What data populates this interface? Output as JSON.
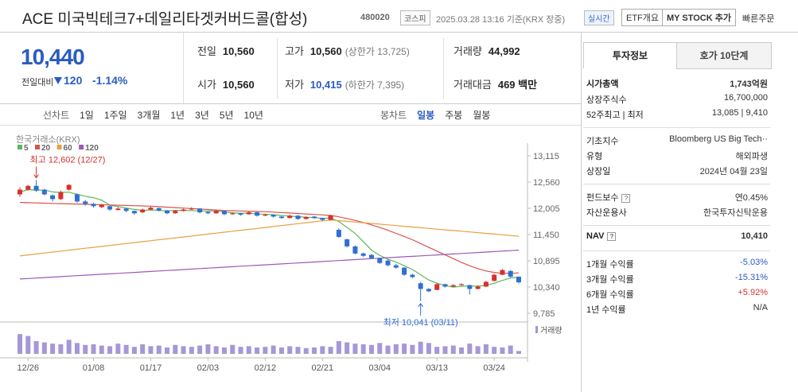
{
  "header": {
    "name": "ACE 미국빅테크7+데일리타겟커버드콜(합성)",
    "code": "480020",
    "market": "코스피",
    "time": "2025.03.28 13:16 기준(KRX 장중)",
    "realtime": "실시간",
    "etf_btn": "ETF개요",
    "mystock_btn": "MY STOCK 추가",
    "order": "빠른주문"
  },
  "price": {
    "value": "10,440",
    "change_label": "전일대비",
    "change": "120",
    "rate": "-1.14%"
  },
  "info": {
    "rows": [
      [
        {
          "label": "전일",
          "value": "10,560"
        },
        {
          "label": "고가",
          "value": "10,560",
          "extra": "(상한가 13,725)"
        },
        {
          "label": "거래량",
          "value": "44,992"
        }
      ],
      [
        {
          "label": "시가",
          "value": "10,560"
        },
        {
          "label": "저가",
          "value": "10,415",
          "extra": "(하한가 7,395)"
        },
        {
          "label": "거래대금",
          "value": "469 백만"
        }
      ]
    ]
  },
  "tabs": {
    "line": [
      "선차트",
      "1일",
      "1주일",
      "3개월",
      "1년",
      "3년",
      "5년",
      "10년"
    ],
    "candle": [
      "봉차트",
      "일봉",
      "주봉",
      "월봉"
    ]
  },
  "chart_data": {
    "type": "candlestick",
    "source": "한국거래소(KRX)",
    "categories": [
      null,
      "12/26",
      null,
      null,
      null,
      null,
      null,
      null,
      null,
      "01/08",
      null,
      null,
      null,
      null,
      null,
      null,
      "01/17",
      null,
      null,
      null,
      null,
      null,
      null,
      "02/03",
      null,
      null,
      null,
      null,
      null,
      null,
      "02/12",
      null,
      null,
      null,
      null,
      null,
      null,
      "02/21",
      null,
      null,
      null,
      null,
      null,
      null,
      "03/04",
      null,
      null,
      null,
      null,
      null,
      null,
      "03/13",
      null,
      null,
      null,
      null,
      null,
      null,
      "03/24",
      null,
      null,
      null
    ],
    "ohlc": [
      [
        12300,
        12450,
        12250,
        12400
      ],
      [
        12400,
        12500,
        12380,
        12480
      ],
      [
        12480,
        12602,
        12350,
        12380
      ],
      [
        12400,
        12420,
        12280,
        12300
      ],
      [
        12280,
        12300,
        12150,
        12200
      ],
      [
        12200,
        12380,
        12180,
        12350
      ],
      [
        12400,
        12520,
        12380,
        12500
      ],
      [
        12300,
        12320,
        12120,
        12150
      ],
      [
        12150,
        12180,
        12060,
        12100
      ],
      [
        12100,
        12120,
        12020,
        12050
      ],
      [
        12030,
        12100,
        12010,
        12080
      ],
      [
        12050,
        12060,
        11950,
        11980
      ],
      [
        11970,
        12030,
        11960,
        12000
      ],
      [
        12000,
        12010,
        11920,
        11950
      ],
      [
        11950,
        11960,
        11870,
        11900
      ],
      [
        11920,
        12000,
        11900,
        11980
      ],
      [
        11980,
        12050,
        11970,
        12020
      ],
      [
        12010,
        12020,
        11940,
        11960
      ],
      [
        11960,
        11970,
        11880,
        11900
      ],
      [
        11900,
        11970,
        11890,
        11950
      ],
      [
        11950,
        12000,
        11940,
        11980
      ],
      [
        11980,
        12030,
        11970,
        12000
      ],
      [
        12000,
        12010,
        11900,
        11920
      ],
      [
        11930,
        11940,
        11880,
        11900
      ],
      [
        11900,
        11970,
        11890,
        11950
      ],
      [
        11950,
        11960,
        11860,
        11880
      ],
      [
        11880,
        11920,
        11870,
        11900
      ],
      [
        11900,
        11910,
        11850,
        11870
      ],
      [
        11880,
        11940,
        11870,
        11920
      ],
      [
        11920,
        11930,
        11830,
        11850
      ],
      [
        11850,
        11890,
        11840,
        11870
      ],
      [
        11870,
        11880,
        11810,
        11830
      ],
      [
        11830,
        11840,
        11780,
        11800
      ],
      [
        11800,
        11870,
        11790,
        11850
      ],
      [
        11850,
        11860,
        11760,
        11780
      ],
      [
        11780,
        11840,
        11770,
        11820
      ],
      [
        11830,
        11840,
        11780,
        11800
      ],
      [
        11800,
        11810,
        11740,
        11760
      ],
      [
        11760,
        11870,
        11750,
        11850
      ],
      [
        11550,
        11580,
        11380,
        11400
      ],
      [
        11350,
        11360,
        11180,
        11200
      ],
      [
        11200,
        11220,
        11030,
        11050
      ],
      [
        11050,
        11070,
        10980,
        11000
      ],
      [
        11020,
        11040,
        10930,
        10950
      ],
      [
        10950,
        10960,
        10830,
        10850
      ],
      [
        10900,
        10920,
        10780,
        10800
      ],
      [
        10800,
        10830,
        10730,
        10750
      ],
      [
        10750,
        10760,
        10580,
        10600
      ],
      [
        10600,
        10620,
        10530,
        10550
      ],
      [
        10420,
        10450,
        10041,
        10300
      ],
      [
        10300,
        10320,
        10230,
        10250
      ],
      [
        10280,
        10420,
        10270,
        10400
      ],
      [
        10400,
        10410,
        10330,
        10350
      ],
      [
        10350,
        10400,
        10340,
        10380
      ],
      [
        10380,
        10420,
        10370,
        10400
      ],
      [
        10380,
        10390,
        10180,
        10300
      ],
      [
        10300,
        10380,
        10290,
        10350
      ],
      [
        10350,
        10470,
        10340,
        10450
      ],
      [
        10470,
        10620,
        10460,
        10600
      ],
      [
        10600,
        10720,
        10590,
        10700
      ],
      [
        10680,
        10700,
        10540,
        10560
      ],
      [
        10560,
        10560,
        10415,
        10440
      ]
    ],
    "up_color": "#d8302c",
    "down_color": "#2f6fd0",
    "series": [
      {
        "name": "5",
        "color": "#5cb85c",
        "values": [
          12350,
          12400,
          12390,
          12390,
          12352,
          12342,
          12346,
          12300,
          12260,
          12230,
          12176,
          12072,
          12042,
          12012,
          11982,
          11962,
          11970,
          11962,
          11952,
          11962,
          11962,
          11958,
          11950,
          11950,
          11950,
          11930,
          11910,
          11900,
          11904,
          11884,
          11882,
          11868,
          11854,
          11840,
          11826,
          11816,
          11810,
          11792,
          11802,
          11726,
          11602,
          11472,
          11300,
          11120,
          11010,
          10930,
          10870,
          10790,
          10710,
          10600,
          10490,
          10420,
          10370,
          10336,
          10356,
          10366,
          10356,
          10376,
          10420,
          10480,
          10532,
          10550
        ]
      },
      {
        "name": "20",
        "color": "#d9534f",
        "values": [
          12130,
          12125,
          12120,
          12115,
          12110,
          12105,
          12100,
          12095,
          12090,
          12085,
          12080,
          12075,
          12070,
          12065,
          12060,
          12055,
          12050,
          12040,
          12030,
          12020,
          12010,
          12000,
          11990,
          11980,
          11970,
          11960,
          11955,
          11950,
          11945,
          11940,
          11935,
          11925,
          11915,
          11905,
          11895,
          11885,
          11875,
          11865,
          11855,
          11825,
          11790,
          11750,
          11705,
          11655,
          11600,
          11540,
          11475,
          11410,
          11340,
          11260,
          11180,
          11100,
          11020,
          10940,
          10860,
          10790,
          10730,
          10680,
          10650,
          10630,
          10630,
          10640
        ]
      },
      {
        "name": "60",
        "color": "#e8a040",
        "values": [
          11000,
          11020,
          11040,
          11060,
          11080,
          11100,
          11120,
          11140,
          11160,
          11180,
          11200,
          11220,
          11240,
          11260,
          11280,
          11300,
          11320,
          11340,
          11360,
          11380,
          11400,
          11420,
          11440,
          11460,
          11480,
          11500,
          11520,
          11540,
          11560,
          11580,
          11600,
          11620,
          11640,
          11660,
          11680,
          11700,
          11720,
          11740,
          11760,
          11745,
          11730,
          11715,
          11700,
          11685,
          11670,
          11655,
          11640,
          11625,
          11610,
          11595,
          11580,
          11565,
          11550,
          11535,
          11520,
          11505,
          11490,
          11475,
          11460,
          11445,
          11430,
          11415
        ]
      },
      {
        "name": "120",
        "color": "#9b59b6",
        "values": [
          10510,
          10520,
          10530,
          10540,
          10550,
          10560,
          10570,
          10580,
          10590,
          10600,
          10610,
          10620,
          10630,
          10640,
          10650,
          10660,
          10670,
          10680,
          10690,
          10700,
          10710,
          10720,
          10730,
          10740,
          10750,
          10760,
          10770,
          10780,
          10790,
          10800,
          10810,
          10820,
          10830,
          10840,
          10850,
          10860,
          10870,
          10880,
          10890,
          10900,
          10910,
          10920,
          10930,
          10940,
          10950,
          10960,
          10970,
          10980,
          10990,
          11000,
          11010,
          11020,
          11030,
          11040,
          11050,
          11060,
          11070,
          11080,
          11090,
          11100,
          11110,
          11120
        ]
      }
    ],
    "volume": {
      "name": "거래량",
      "color": "#a597d8",
      "ylim": [
        0,
        500000
      ],
      "values": [
        310000,
        280000,
        200000,
        180000,
        160000,
        150000,
        220000,
        170000,
        140000,
        150000,
        130000,
        120000,
        160000,
        140000,
        110000,
        150000,
        120000,
        130000,
        100000,
        140000,
        120000,
        110000,
        130000,
        150000,
        120000,
        100000,
        140000,
        110000,
        120000,
        100000,
        110000,
        130000,
        100000,
        120000,
        110000,
        90000,
        100000,
        120000,
        110000,
        200000,
        180000,
        160000,
        150000,
        140000,
        170000,
        130000,
        150000,
        160000,
        140000,
        190000,
        170000,
        110000,
        120000,
        130000,
        100000,
        160000,
        120000,
        150000,
        110000,
        100000,
        130000,
        44992
      ]
    },
    "ylim": [
      9600,
      13300
    ],
    "yticks": [
      {
        "value": 13115,
        "label": "13,115"
      },
      {
        "value": 12560,
        "label": "12,560"
      },
      {
        "value": 12005,
        "label": "12,005"
      },
      {
        "value": 11450,
        "label": "11,450"
      },
      {
        "value": 10895,
        "label": "10,895"
      },
      {
        "value": 10340,
        "label": "10,340"
      },
      {
        "value": 9785,
        "label": "9,785"
      }
    ],
    "annotations": {
      "high": "최고 12,602 (12/27)",
      "low": "최저 10,041 (03/11)"
    }
  },
  "panel": {
    "tabs": [
      "투자정보",
      "호가 10단계"
    ],
    "help": "?",
    "rows": [
      {
        "label": "시가총액",
        "value": "1,743억원"
      },
      {
        "label": "상장주식수",
        "value": "16,700,000"
      },
      {
        "label": "52주최고 | 최저",
        "value": "13,085 | 9,410"
      },
      {
        "label": "기초지수",
        "value": "Bloomberg US Big Tech··"
      },
      {
        "label": "유형",
        "value": "해외파생"
      },
      {
        "label": "상장일",
        "value": "2024년 04월 23일"
      },
      {
        "label": "펀드보수",
        "value": "연0.45%"
      },
      {
        "label": "자산운용사",
        "value": "한국투자신탁운용"
      },
      {
        "label": "NAV",
        "value": "10,410"
      },
      {
        "label": "1개월 수익률",
        "value": "-5.03%"
      },
      {
        "label": "3개월 수익률",
        "value": "-15.31%"
      },
      {
        "label": "6개월 수익률",
        "value": "+5.92%"
      },
      {
        "label": "1년 수익률",
        "value": "N/A"
      }
    ]
  }
}
